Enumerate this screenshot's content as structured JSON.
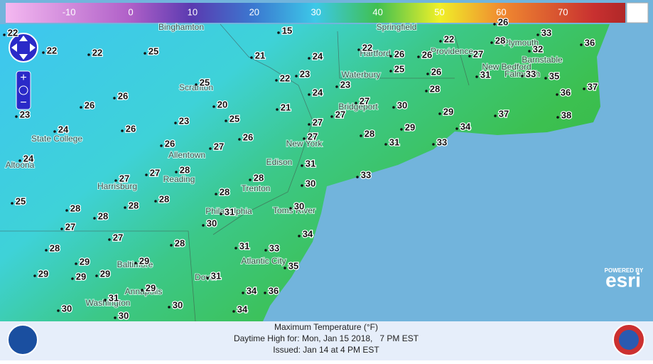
{
  "color_scale": {
    "labels": [
      -10,
      0,
      10,
      20,
      30,
      40,
      50,
      60,
      70
    ]
  },
  "cities": [
    "Binghamton",
    "Springfield",
    "Hartford",
    "Providence",
    "Plymouth",
    "Barnstable",
    "New Bedford",
    "Falmouth",
    "Waterbury",
    "Scranton",
    "Bridgeport",
    "New York",
    "State College",
    "Allentown",
    "Edison",
    "Altoona",
    "Harrisburg",
    "Reading",
    "Trenton",
    "Philadelphia",
    "Toms River",
    "Baltimore",
    "Annapolis",
    "Washington",
    "Atlantic City",
    "Dover"
  ],
  "temperatures": [
    22,
    22,
    22,
    25,
    15,
    21,
    24,
    22,
    26,
    26,
    22,
    27,
    26,
    28,
    33,
    32,
    36,
    25,
    22,
    23,
    23,
    25,
    26,
    31,
    33,
    35,
    24,
    27,
    28,
    36,
    37,
    26,
    26,
    23,
    20,
    25,
    21,
    23,
    30,
    27,
    29,
    37,
    38,
    27,
    29,
    34,
    24,
    26,
    27,
    26,
    27,
    28,
    31,
    33,
    26,
    24,
    31,
    33,
    27,
    28,
    27,
    28,
    30,
    28,
    28,
    28,
    25,
    28,
    28,
    30,
    31,
    30,
    34,
    27,
    27,
    28,
    28,
    31,
    33,
    29,
    29,
    35,
    29,
    29,
    29,
    31,
    29,
    31,
    34,
    36,
    30,
    30,
    34,
    30
  ],
  "footer": {
    "title": "Maximum Temperature (°F)",
    "subtitle": "Daytime High for: Mon, Jan 15 2018,   7 PM EST",
    "issued": "Issued: Jan 14 at 4 PM EST"
  },
  "attribution": {
    "powered_by": "POWERED BY",
    "brand": "esri"
  }
}
